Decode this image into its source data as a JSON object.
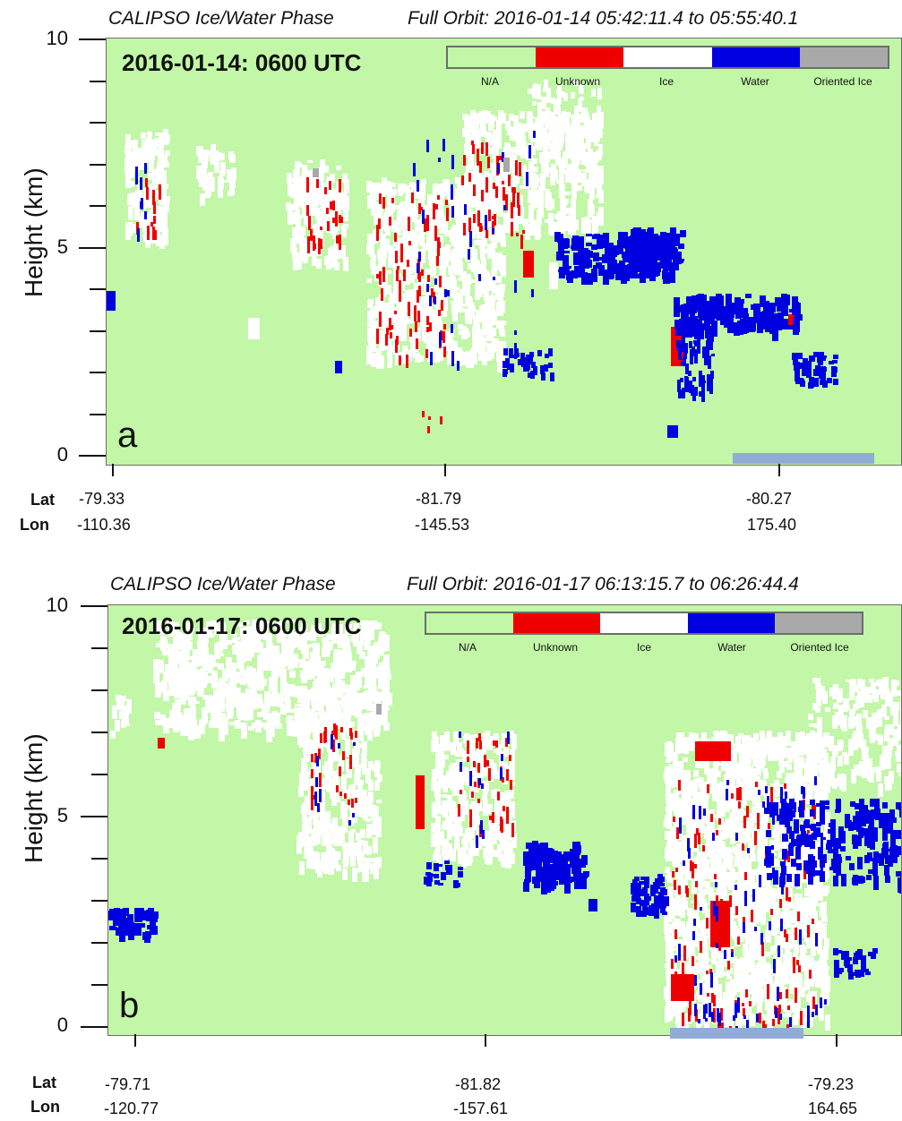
{
  "colors": {
    "na": "#c1f7a6",
    "unknown": "#ee0000",
    "ice": "#ffffff",
    "water": "#0000e0",
    "oriented_ice": "#a9a9a9",
    "bar": "#92acd8"
  },
  "legend": [
    "N/A",
    "Unknown",
    "Ice",
    "Water",
    "Oriented Ice"
  ],
  "coord_keys": {
    "lat": "Lat",
    "lon": "Lon"
  },
  "chart_data": [
    {
      "type": "heatmap",
      "title_left": "CALIPSO Ice/Water Phase",
      "title_right": "Full Orbit: 2016-01-14 05:42:11.4 to 05:55:40.1",
      "date_label": "2016-01-14: 0600 UTC",
      "panel_letter": "a",
      "ylabel": "Height (km)",
      "ylim": [
        0,
        10
      ],
      "yticks": [
        "10",
        "5",
        "0"
      ],
      "x_ticks": [
        {
          "lat": "-79.33",
          "lon": "-110.36"
        },
        {
          "lat": "-81.79",
          "lon": "-145.53"
        },
        {
          "lat": "-80.27",
          "lon": "175.40"
        }
      ],
      "categories": [
        "N/A",
        "Unknown",
        "Ice",
        "Water",
        "Oriented Ice"
      ],
      "highlight_range": [
        0.8,
        0.98
      ]
    },
    {
      "type": "heatmap",
      "title_left": "CALIPSO Ice/Water Phase",
      "title_right": "Full Orbit: 2016-01-17 06:13:15.7 to 06:26:44.4",
      "date_label": "2016-01-17: 0600 UTC",
      "panel_letter": "b",
      "ylabel": "Height (km)",
      "ylim": [
        0,
        10
      ],
      "yticks": [
        "10",
        "5",
        "0"
      ],
      "x_ticks": [
        {
          "lat": "-79.71",
          "lon": "-120.77"
        },
        {
          "lat": "-81.82",
          "lon": "-157.61"
        },
        {
          "lat": "-79.23",
          "lon": "164.65"
        }
      ],
      "categories": [
        "N/A",
        "Unknown",
        "Ice",
        "Water",
        "Oriented Ice"
      ],
      "highlight_range": [
        0.71,
        0.88
      ]
    }
  ]
}
